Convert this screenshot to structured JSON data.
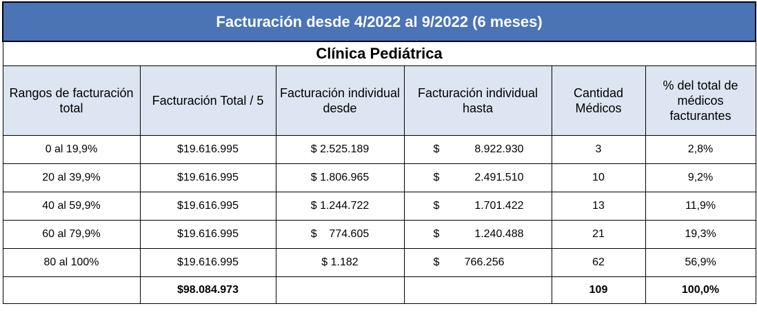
{
  "title": "Facturación desde  4/2022 al  9/2022 (6 meses)",
  "subtitle": "Clínica Pediátrica",
  "headers": [
    "Rangos de facturación total",
    "Facturación Total / 5",
    "Facturación individual desde",
    "Facturación individual hasta",
    "Cantidad Médicos",
    "% del total de médicos facturantes"
  ],
  "rows": [
    {
      "rango": "0 al 19,9%",
      "total5": "$19.616.995",
      "desde": "$ 2.525.189",
      "hasta_sym": "$",
      "hasta": "8.922.930",
      "cantidad": "3",
      "pct": "2,8%"
    },
    {
      "rango": "20 al 39,9%",
      "total5": "$19.616.995",
      "desde": "$ 1.806.965",
      "hasta_sym": "$",
      "hasta": "2.491.510",
      "cantidad": "10",
      "pct": "9,2%"
    },
    {
      "rango": "40 al 59,9%",
      "total5": "$19.616.995",
      "desde": "$ 1.244.722",
      "hasta_sym": "$",
      "hasta": "1.701.422",
      "cantidad": "13",
      "pct": "11,9%"
    },
    {
      "rango": "60 al 79,9%",
      "total5": "$19.616.995",
      "desde": "$    774.605",
      "hasta_sym": "$",
      "hasta": "1.240.488",
      "cantidad": "21",
      "pct": "19,3%"
    },
    {
      "rango": "80 al 100%",
      "total5": "$19.616.995",
      "desde": "$ 1.182",
      "hasta_sym": "$",
      "hasta": "766.256",
      "cantidad": "62",
      "pct": "56,9%"
    }
  ],
  "totals": {
    "rango": "",
    "total5": "$98.084.973",
    "desde": "",
    "hasta": "",
    "cantidad": "109",
    "pct": "100,0%"
  }
}
